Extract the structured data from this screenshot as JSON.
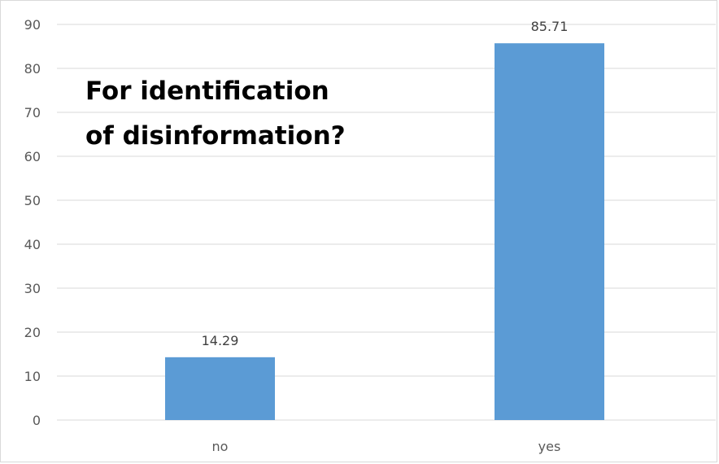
{
  "chart_data": {
    "type": "bar",
    "title_lines": [
      "For identification",
      "of disinformation?"
    ],
    "categories": [
      "no",
      "yes"
    ],
    "values": [
      14.29,
      85.71
    ],
    "data_labels": [
      "14.29",
      "85.71"
    ],
    "ylim": [
      0,
      90
    ],
    "yticks": [
      "0",
      "10",
      "20",
      "30",
      "40",
      "50",
      "60",
      "70",
      "80",
      "90"
    ],
    "grid": true,
    "bar_color": "#5b9bd5",
    "gridline_color": "#d9d9d9"
  }
}
